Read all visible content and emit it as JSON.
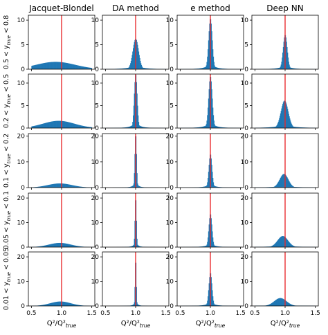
{
  "colors": {
    "histogram": "#1f77b4",
    "reference_line": "#e8272a",
    "frame": "#000000"
  },
  "chart_data": {
    "type": "bar",
    "layout": "grid 5 rows x 4 columns of histograms",
    "x_range": [
      0.45,
      1.55
    ],
    "x_ticks": [
      "0.5",
      "1.0",
      "1.5"
    ],
    "x_tick_values": [
      0.5,
      1.0,
      1.5
    ],
    "x_label": "Q²/Q²",
    "x_label_sub": "true",
    "reference_x": 1.0,
    "columns": [
      {
        "title": "Jacquet-Blondel",
        "key": "jb"
      },
      {
        "title": "DA method",
        "key": "da"
      },
      {
        "title": "e method",
        "key": "e"
      },
      {
        "title": "Deep NN",
        "key": "nn"
      }
    ],
    "rows": [
      {
        "label_pre": "0.5 < y",
        "label_sub": "true",
        "label_post": " < 0.8",
        "ylim": [
          0,
          11
        ],
        "y_ticks": [
          "0",
          "5",
          "10"
        ],
        "y_tick_values": [
          0,
          5,
          10
        ],
        "hist": {
          "jb": {
            "shape": "broad",
            "mu": 0.9,
            "sigma": 0.32,
            "peak": 1.5
          },
          "da": {
            "shape": "peak",
            "mu": 1.0,
            "sigma": 0.048,
            "peak": 6.2
          },
          "e": {
            "shape": "peak",
            "mu": 1.0,
            "sigma": 0.03,
            "peak": 10.3
          },
          "nn": {
            "shape": "peak",
            "mu": 1.0,
            "sigma": 0.034,
            "peak": 7.0
          }
        }
      },
      {
        "label_pre": "0.2 < y",
        "label_sub": "true",
        "label_post": " < 0.5",
        "ylim": [
          0,
          12
        ],
        "y_ticks": [
          "0",
          "5",
          "10"
        ],
        "y_tick_values": [
          0,
          5,
          10
        ],
        "hist": {
          "jb": {
            "shape": "broad",
            "mu": 0.95,
            "sigma": 0.26,
            "peak": 1.6
          },
          "da": {
            "shape": "peak",
            "mu": 1.0,
            "sigma": 0.024,
            "peak": 12.0
          },
          "e": {
            "shape": "peak",
            "mu": 1.0,
            "sigma": 0.03,
            "peak": 11.5
          },
          "nn": {
            "shape": "peak",
            "mu": 0.99,
            "sigma": 0.06,
            "peak": 6.1
          }
        }
      },
      {
        "label_pre": "0.1 < y",
        "label_sub": "true",
        "label_post": " < 0.2",
        "ylim": [
          0,
          21
        ],
        "y_ticks": [
          "0",
          "10",
          "20"
        ],
        "y_tick_values": [
          0,
          10,
          20
        ],
        "hist": {
          "jb": {
            "shape": "broad",
            "mu": 0.97,
            "sigma": 0.2,
            "peak": 1.6
          },
          "da": {
            "shape": "peak",
            "mu": 1.0,
            "sigma": 0.014,
            "peak": 21.0
          },
          "e": {
            "shape": "peak",
            "mu": 1.0,
            "sigma": 0.026,
            "peak": 13.0
          },
          "nn": {
            "shape": "peak",
            "mu": 0.98,
            "sigma": 0.07,
            "peak": 5.3
          }
        }
      },
      {
        "label_pre": "0.05 < y",
        "label_sub": "true",
        "label_post": " < 0.1",
        "ylim": [
          0,
          22
        ],
        "y_ticks": [
          "0",
          "10",
          "20"
        ],
        "y_tick_values": [
          0,
          10,
          20
        ],
        "hist": {
          "jb": {
            "shape": "broad",
            "mu": 0.97,
            "sigma": 0.18,
            "peak": 1.7
          },
          "da": {
            "shape": "peak",
            "mu": 1.0,
            "sigma": 0.012,
            "peak": 20.5
          },
          "e": {
            "shape": "peak",
            "mu": 1.0,
            "sigma": 0.026,
            "peak": 13.5
          },
          "nn": {
            "shape": "peak",
            "mu": 0.96,
            "sigma": 0.085,
            "peak": 4.5
          }
        }
      },
      {
        "label_pre": "0.01 < y",
        "label_sub": "true",
        "label_post": " < 0.05",
        "ylim": [
          0,
          22
        ],
        "y_ticks": [
          "0",
          "10",
          "20"
        ],
        "y_tick_values": [
          0,
          10,
          20
        ],
        "hist": {
          "jb": {
            "shape": "broad",
            "mu": 0.98,
            "sigma": 0.17,
            "peak": 1.8
          },
          "da": {
            "shape": "peak",
            "mu": 1.0,
            "sigma": 0.01,
            "peak": 19.5
          },
          "e": {
            "shape": "peak",
            "mu": 1.0,
            "sigma": 0.026,
            "peak": 13.5
          },
          "nn": {
            "shape": "peak",
            "mu": 0.92,
            "sigma": 0.1,
            "peak": 3.2
          }
        }
      }
    ]
  }
}
